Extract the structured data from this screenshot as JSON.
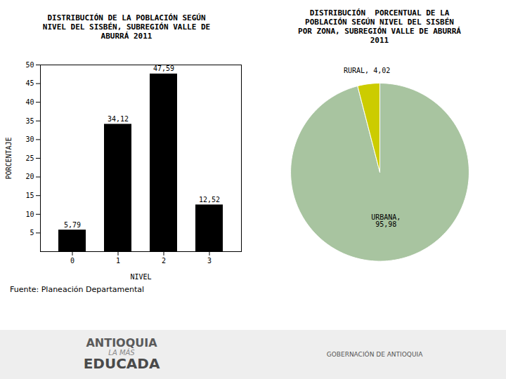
{
  "chart_data": [
    {
      "type": "bar",
      "title": "DISTRIBUCIÓN DE LA POBLACIÓN SEGÚN\nNIVEL DEL SISBÉN, SUBREGIÓN VALLE DE\nABURRÁ 2011",
      "xlabel": "NIVEL",
      "ylabel": "PORCENTAJE",
      "categories": [
        "0",
        "1",
        "2",
        "3"
      ],
      "values": [
        5.79,
        34.12,
        47.59,
        12.52
      ],
      "value_labels": [
        "5,79",
        "34,12",
        "47,59",
        "12,52"
      ],
      "data_labels": true,
      "ylim": [
        0,
        50
      ],
      "yticks": [
        5,
        10,
        15,
        20,
        25,
        30,
        35,
        40,
        45,
        50
      ],
      "grid": false,
      "annotations": [
        "Fuente: Planeación Departamental",
        "ANTIOQUIA",
        "LA MÁS",
        "EDUCADA",
        "GOBERNACIÓN DE ANTIOQUIA"
      ]
    },
    {
      "type": "pie",
      "title": "DISTRIBUCIÓN  PORCENTUAL DE LA\nPOBLACIÓN SEGÚN NIVEL DEL SISBÉN\nPOR ZONA, SUBREGIÓN VALLE DE ABURRÁ\n2011",
      "categories": [
        "URBANA",
        "RURAL"
      ],
      "values": [
        95.98,
        4.02
      ],
      "value_labels": [
        "URBANA,\n95,98",
        "RURAL, 4,02"
      ],
      "data_labels": true,
      "colors": [
        "#a8c4a0",
        "#cccc00"
      ]
    }
  ]
}
